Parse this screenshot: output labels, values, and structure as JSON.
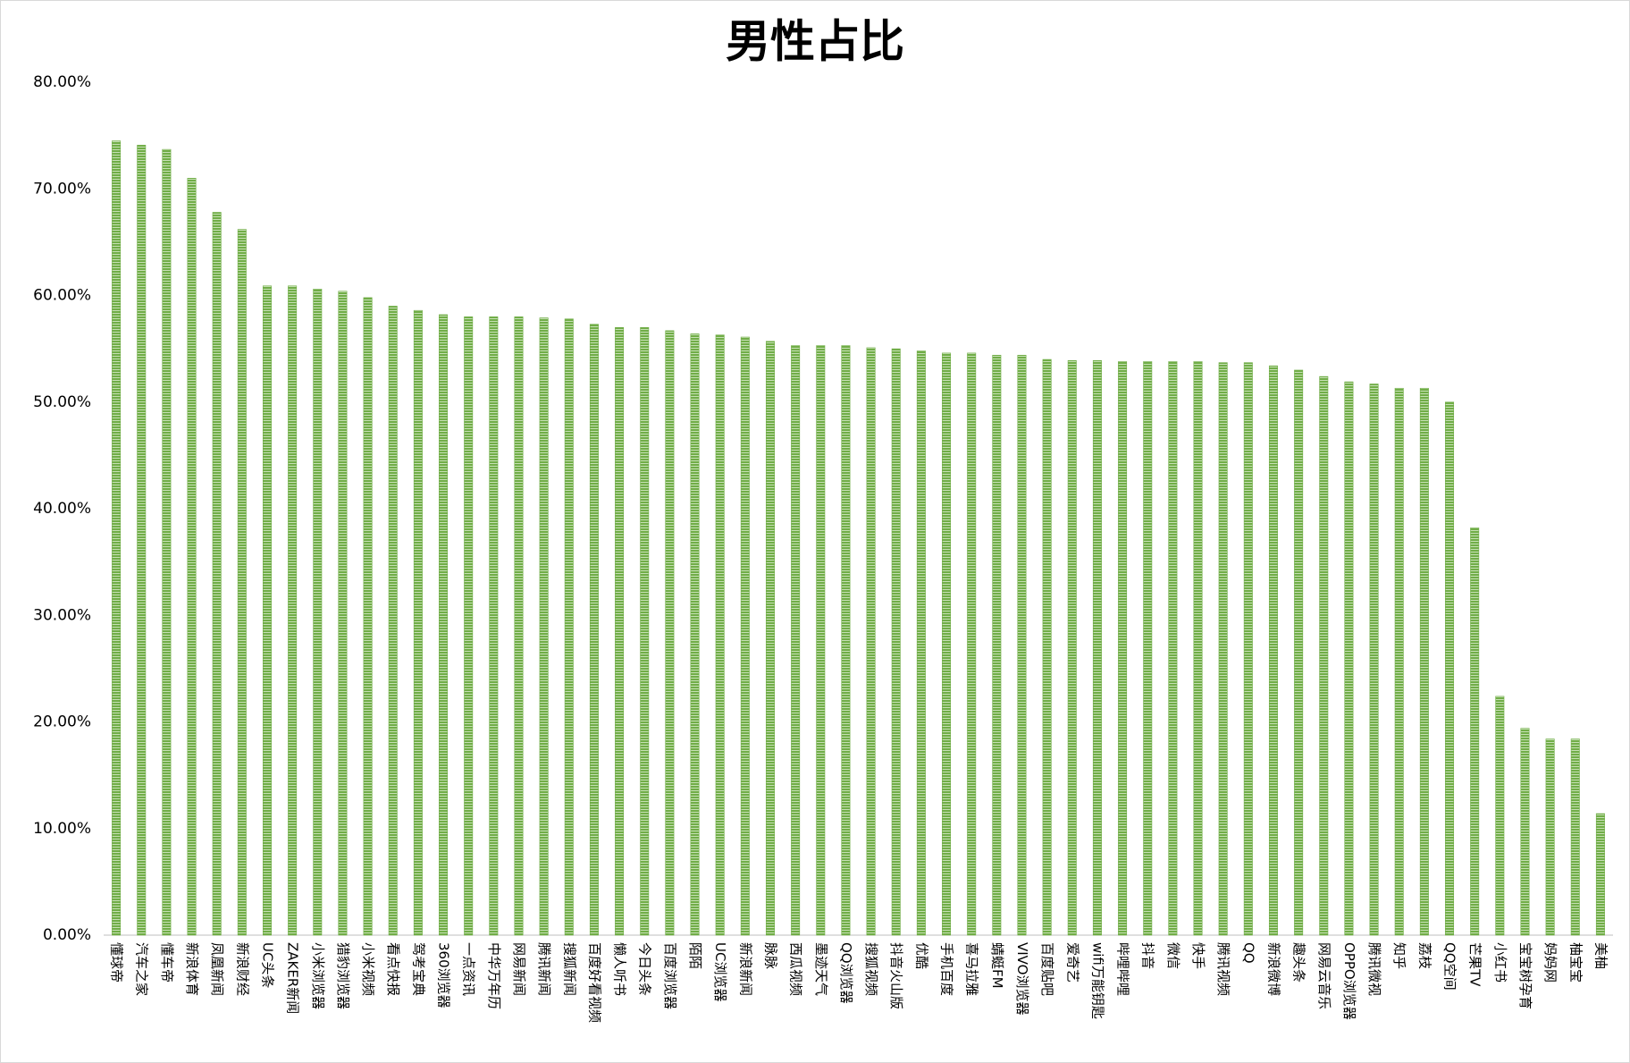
{
  "chart_data": {
    "type": "bar",
    "title": "男性占比",
    "categories": [
      "懂球帝",
      "汽车之家",
      "懂车帝",
      "新浪体育",
      "凤凰新闻",
      "新浪财经",
      "UC头条",
      "ZAKER新闻",
      "小米浏览器",
      "猎豹浏览器",
      "小米视频",
      "看点快报",
      "驾考宝典",
      "360浏览器",
      "一点资讯",
      "中华万年历",
      "网易新闻",
      "腾讯新闻",
      "搜狐新闻",
      "百度好看视频",
      "懒人听书",
      "今日头条",
      "百度浏览器",
      "陌陌",
      "UC浏览器",
      "新浪新闻",
      "脉脉",
      "西瓜视频",
      "墨迹天气",
      "QQ浏览器",
      "搜狐视频",
      "抖音火山版",
      "优酷",
      "手机百度",
      "喜马拉雅",
      "蜻蜓FM",
      "VIVO浏览器",
      "百度贴吧",
      "爱奇艺",
      "wifi万能钥匙",
      "哔哩哔哩",
      "抖音",
      "微信",
      "快手",
      "腾讯视频",
      "QQ",
      "新浪微博",
      "趣头条",
      "网易云音乐",
      "OPPO浏览器",
      "腾讯微视",
      "知乎",
      "荔枝",
      "QQ空间",
      "芒果TV",
      "小红书",
      "宝宝树孕育",
      "妈妈网",
      "柚宝宝",
      "美柚"
    ],
    "values": [
      74.5,
      74.1,
      73.7,
      71.0,
      67.8,
      66.2,
      60.9,
      60.9,
      60.6,
      60.4,
      59.8,
      59.0,
      58.6,
      58.2,
      58.0,
      58.0,
      58.0,
      57.9,
      57.8,
      57.3,
      57.0,
      57.0,
      56.7,
      56.4,
      56.3,
      56.1,
      55.7,
      55.3,
      55.3,
      55.3,
      55.1,
      55.0,
      54.8,
      54.6,
      54.6,
      54.4,
      54.4,
      54.0,
      53.9,
      53.9,
      53.8,
      53.8,
      53.8,
      53.8,
      53.7,
      53.7,
      53.4,
      53.0,
      52.4,
      51.9,
      51.7,
      51.3,
      51.3,
      50.0,
      38.2,
      22.4,
      19.4,
      18.4,
      18.4,
      11.4
    ],
    "color": "#70ad47",
    "ylim": [
      0,
      80
    ],
    "yticks": [
      {
        "value": 0,
        "label": "0.00%"
      },
      {
        "value": 10,
        "label": "10.00%"
      },
      {
        "value": 20,
        "label": "20.00%"
      },
      {
        "value": 30,
        "label": "30.00%"
      },
      {
        "value": 40,
        "label": "40.00%"
      },
      {
        "value": 50,
        "label": "50.00%"
      },
      {
        "value": 60,
        "label": "60.00%"
      },
      {
        "value": 70,
        "label": "70.00%"
      },
      {
        "value": 80,
        "label": "80.00%"
      }
    ],
    "grid": false
  }
}
